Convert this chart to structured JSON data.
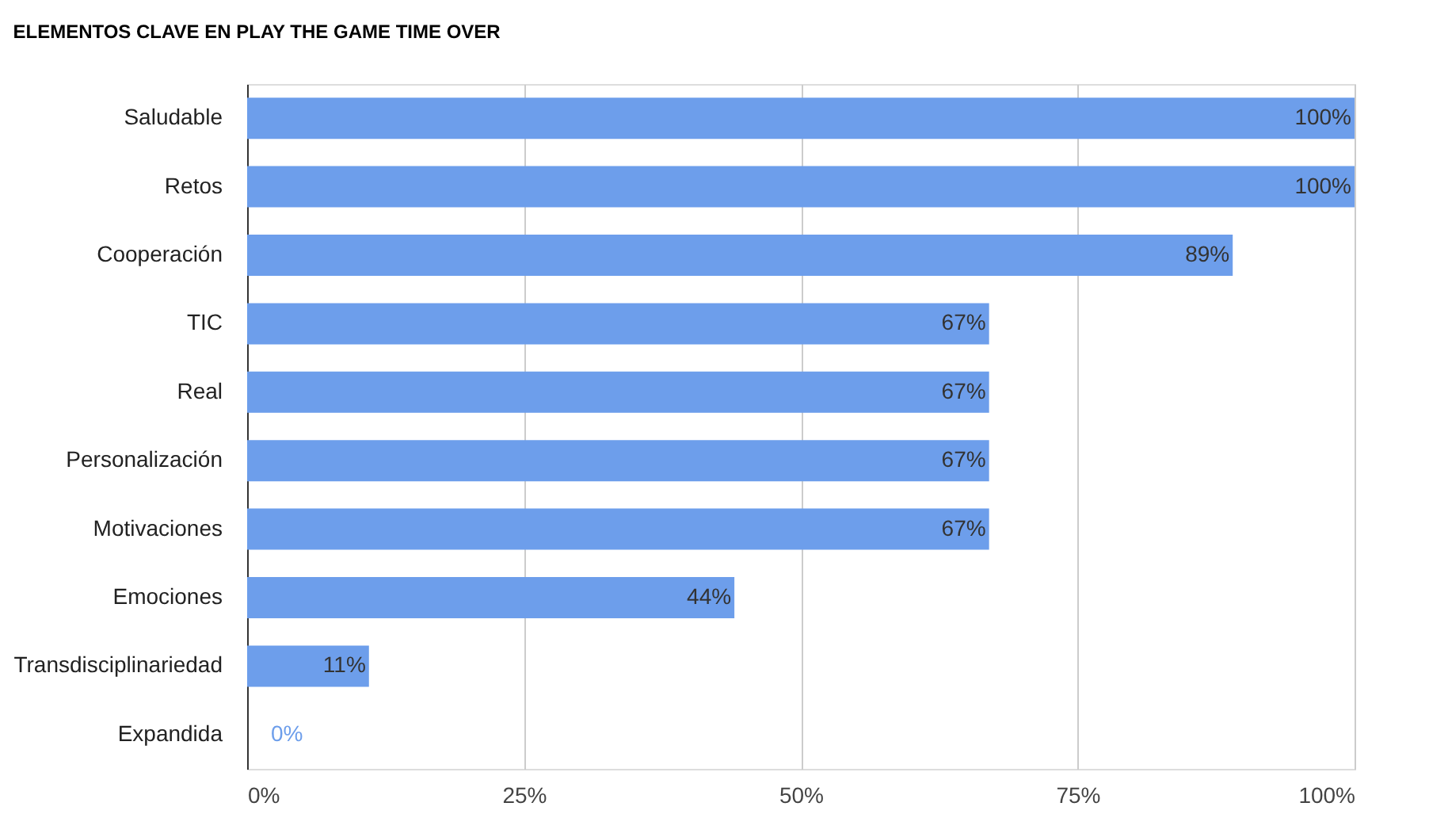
{
  "chart_data": {
    "type": "bar",
    "orientation": "horizontal",
    "title": "ELEMENTOS CLAVE EN PLAY THE GAME TIME OVER",
    "categories": [
      "Saludable",
      "Retos",
      "Cooperación",
      "TIC",
      "Real",
      "Personalización",
      "Motivaciones",
      "Emociones",
      "Transdisciplinariedad",
      "Expandida"
    ],
    "values": [
      100,
      100,
      89,
      67,
      67,
      67,
      67,
      44,
      11,
      0
    ],
    "value_labels": [
      "100%",
      "100%",
      "89%",
      "67%",
      "67%",
      "67%",
      "67%",
      "44%",
      "11%",
      "0%"
    ],
    "color": "#6d9eeb",
    "xlim": [
      0,
      100
    ],
    "xticks": [
      {
        "value": 0,
        "label": "0%"
      },
      {
        "value": 25,
        "label": "25%"
      },
      {
        "value": 50,
        "label": "50%"
      },
      {
        "value": 75,
        "label": "75%"
      },
      {
        "value": 100,
        "label": "100%"
      }
    ],
    "grid": "x"
  }
}
